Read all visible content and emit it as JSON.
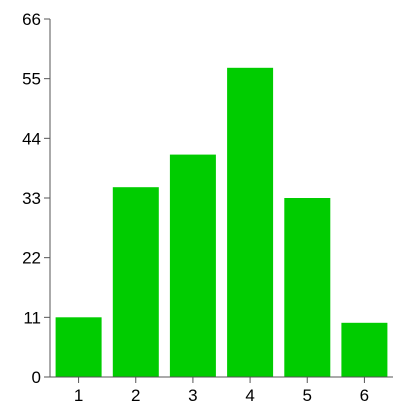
{
  "chart_data": {
    "type": "bar",
    "categories": [
      "1",
      "2",
      "3",
      "4",
      "5",
      "6"
    ],
    "values": [
      11,
      35,
      41,
      57,
      33,
      10
    ],
    "yticks": [
      "0",
      "11",
      "22",
      "33",
      "44",
      "55",
      "66"
    ],
    "ylim": [
      0,
      66
    ],
    "grid": false,
    "title": "",
    "xlabel": "",
    "ylabel": "",
    "colors": {
      "bar": "#00cc00",
      "axis": "#555555",
      "text": "#000000"
    }
  }
}
